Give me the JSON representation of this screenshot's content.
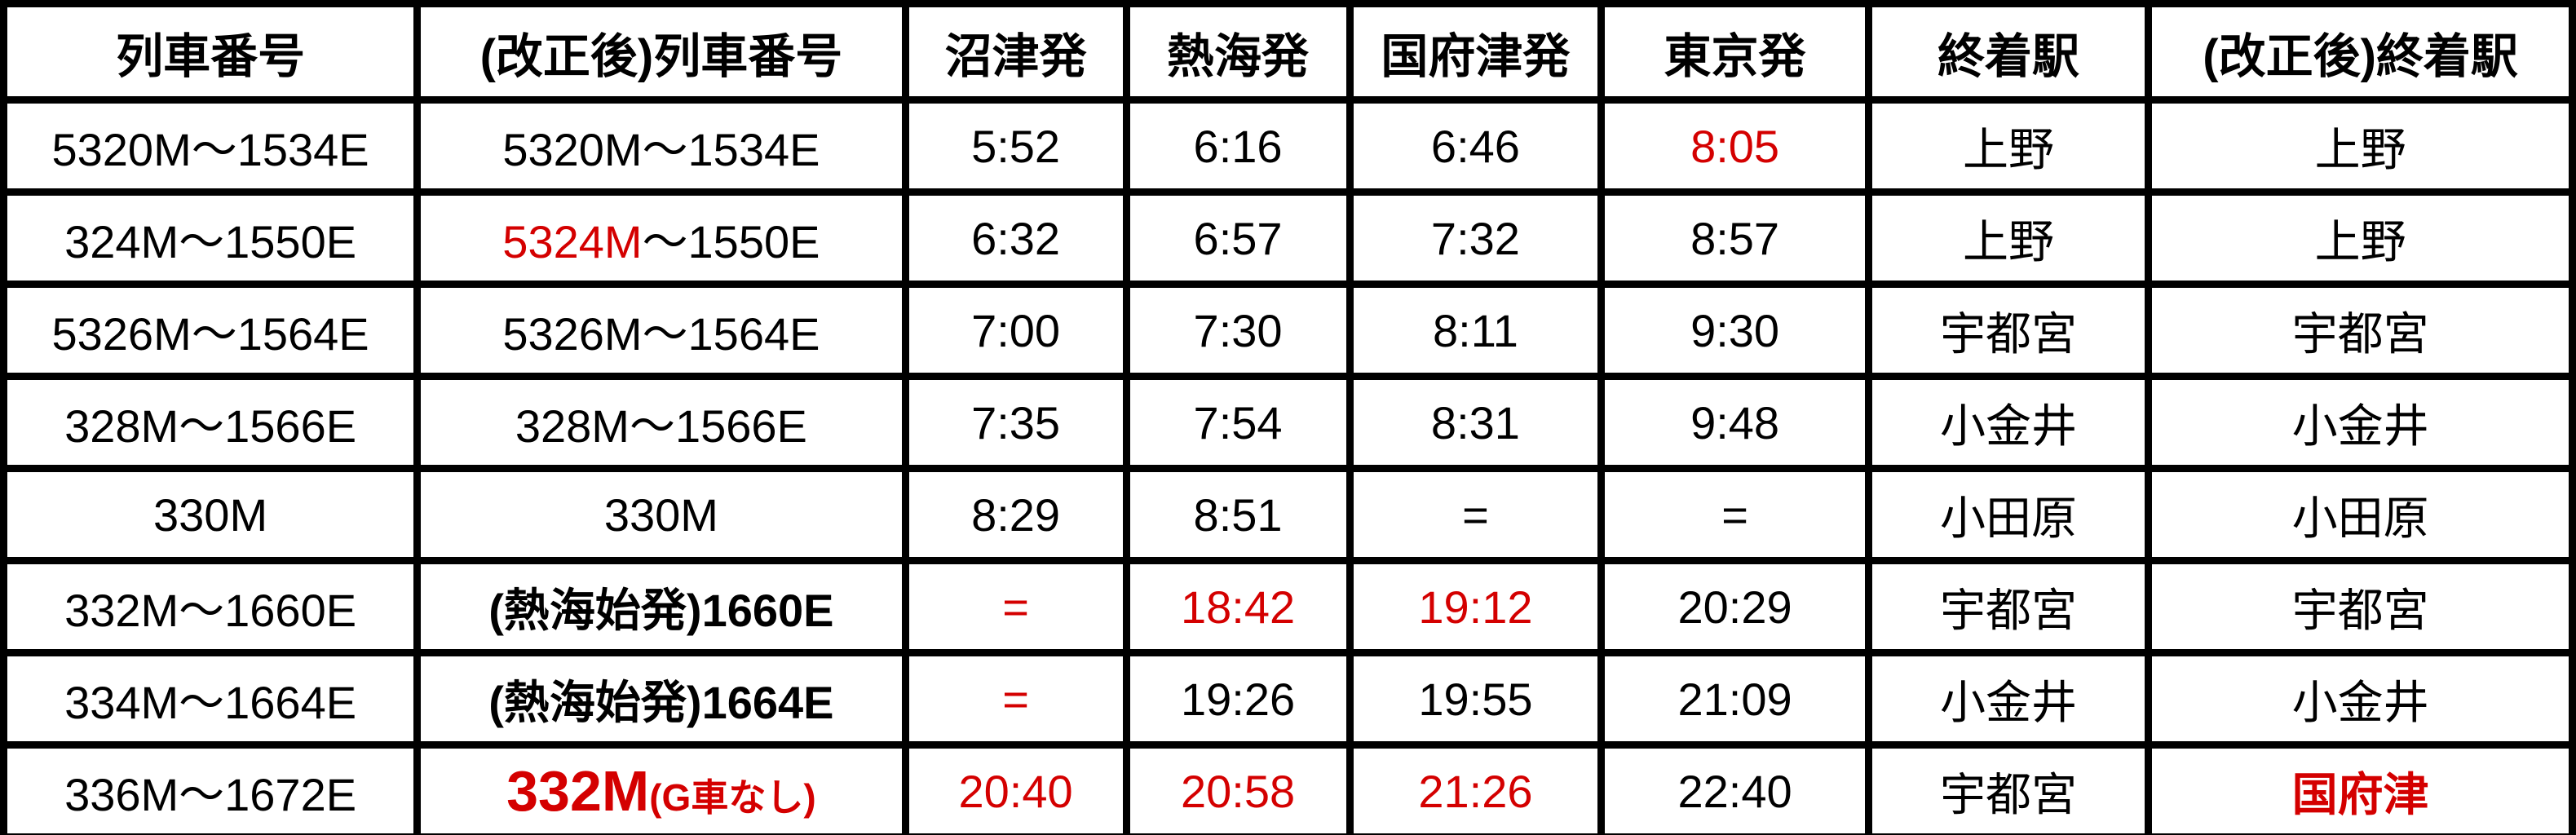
{
  "colors": {
    "red": "#d40000",
    "black": "#000000",
    "border": "#000000",
    "background": "#ffffff"
  },
  "table": {
    "column_keys": [
      "train-number",
      "revised-train-number",
      "numazu-departure",
      "atami-departure",
      "kozu-departure",
      "tokyo-departure",
      "terminal-station",
      "revised-terminal-station"
    ],
    "headers": [
      "列車番号",
      "(改正後)列車番号",
      "沼津発",
      "熱海発",
      "国府津発",
      "東京発",
      "終着駅",
      "(改正後)終着駅"
    ],
    "col_widths_pct": [
      16.1,
      19.0,
      8.6,
      8.7,
      9.8,
      10.4,
      10.9,
      16.5
    ],
    "rows": [
      [
        [
          {
            "t": "5320M～1534E"
          }
        ],
        [
          {
            "t": "5320M～1534E"
          }
        ],
        [
          {
            "t": "5:52"
          }
        ],
        [
          {
            "t": "6:16"
          }
        ],
        [
          {
            "t": "6:46"
          }
        ],
        [
          {
            "t": "8:05",
            "red": true
          }
        ],
        [
          {
            "t": "上野"
          }
        ],
        [
          {
            "t": "上野"
          }
        ]
      ],
      [
        [
          {
            "t": "324M～1550E"
          }
        ],
        [
          {
            "t": "5324M",
            "red": true
          },
          {
            "t": "～1550E"
          }
        ],
        [
          {
            "t": "6:32"
          }
        ],
        [
          {
            "t": "6:57"
          }
        ],
        [
          {
            "t": "7:32"
          }
        ],
        [
          {
            "t": "8:57"
          }
        ],
        [
          {
            "t": "上野"
          }
        ],
        [
          {
            "t": "上野"
          }
        ]
      ],
      [
        [
          {
            "t": "5326M～1564E"
          }
        ],
        [
          {
            "t": "5326M～1564E"
          }
        ],
        [
          {
            "t": "7:00"
          }
        ],
        [
          {
            "t": "7:30"
          }
        ],
        [
          {
            "t": "8:11"
          }
        ],
        [
          {
            "t": "9:30"
          }
        ],
        [
          {
            "t": "宇都宮"
          }
        ],
        [
          {
            "t": "宇都宮"
          }
        ]
      ],
      [
        [
          {
            "t": "328M～1566E"
          }
        ],
        [
          {
            "t": "328M～1566E"
          }
        ],
        [
          {
            "t": "7:35"
          }
        ],
        [
          {
            "t": "7:54"
          }
        ],
        [
          {
            "t": "8:31"
          }
        ],
        [
          {
            "t": "9:48"
          }
        ],
        [
          {
            "t": "小金井"
          }
        ],
        [
          {
            "t": "小金井"
          }
        ]
      ],
      [
        [
          {
            "t": "330M"
          }
        ],
        [
          {
            "t": "330M"
          }
        ],
        [
          {
            "t": "8:29"
          }
        ],
        [
          {
            "t": "8:51"
          }
        ],
        [
          {
            "t": "="
          }
        ],
        [
          {
            "t": "="
          }
        ],
        [
          {
            "t": "小田原"
          }
        ],
        [
          {
            "t": "小田原"
          }
        ]
      ],
      [
        [
          {
            "t": "332M～1660E"
          }
        ],
        [
          {
            "t": "(熱海始発)1660E",
            "bold": true
          }
        ],
        [
          {
            "t": "=",
            "red": true
          }
        ],
        [
          {
            "t": "18:42",
            "red": true
          }
        ],
        [
          {
            "t": "19:12",
            "red": true
          }
        ],
        [
          {
            "t": "20:29"
          }
        ],
        [
          {
            "t": "宇都宮"
          }
        ],
        [
          {
            "t": "宇都宮"
          }
        ]
      ],
      [
        [
          {
            "t": "334M～1664E"
          }
        ],
        [
          {
            "t": "(熱海始発)1664E",
            "bold": true
          }
        ],
        [
          {
            "t": "=",
            "red": true
          }
        ],
        [
          {
            "t": "19:26"
          }
        ],
        [
          {
            "t": "19:55"
          }
        ],
        [
          {
            "t": "21:09"
          }
        ],
        [
          {
            "t": "小金井"
          }
        ],
        [
          {
            "t": "小金井"
          }
        ]
      ],
      [
        [
          {
            "t": "336M～1672E"
          }
        ],
        [
          {
            "t": "332M",
            "red": true,
            "bold": true,
            "size": "large"
          },
          {
            "t": "(G車なし)",
            "red": true,
            "bold": true,
            "size": "small"
          }
        ],
        [
          {
            "t": "20:40",
            "red": true
          }
        ],
        [
          {
            "t": "20:58",
            "red": true
          }
        ],
        [
          {
            "t": "21:26",
            "red": true
          }
        ],
        [
          {
            "t": "22:40"
          }
        ],
        [
          {
            "t": "宇都宮"
          }
        ],
        [
          {
            "t": "国府津",
            "red": true,
            "bold": true
          }
        ]
      ]
    ]
  }
}
